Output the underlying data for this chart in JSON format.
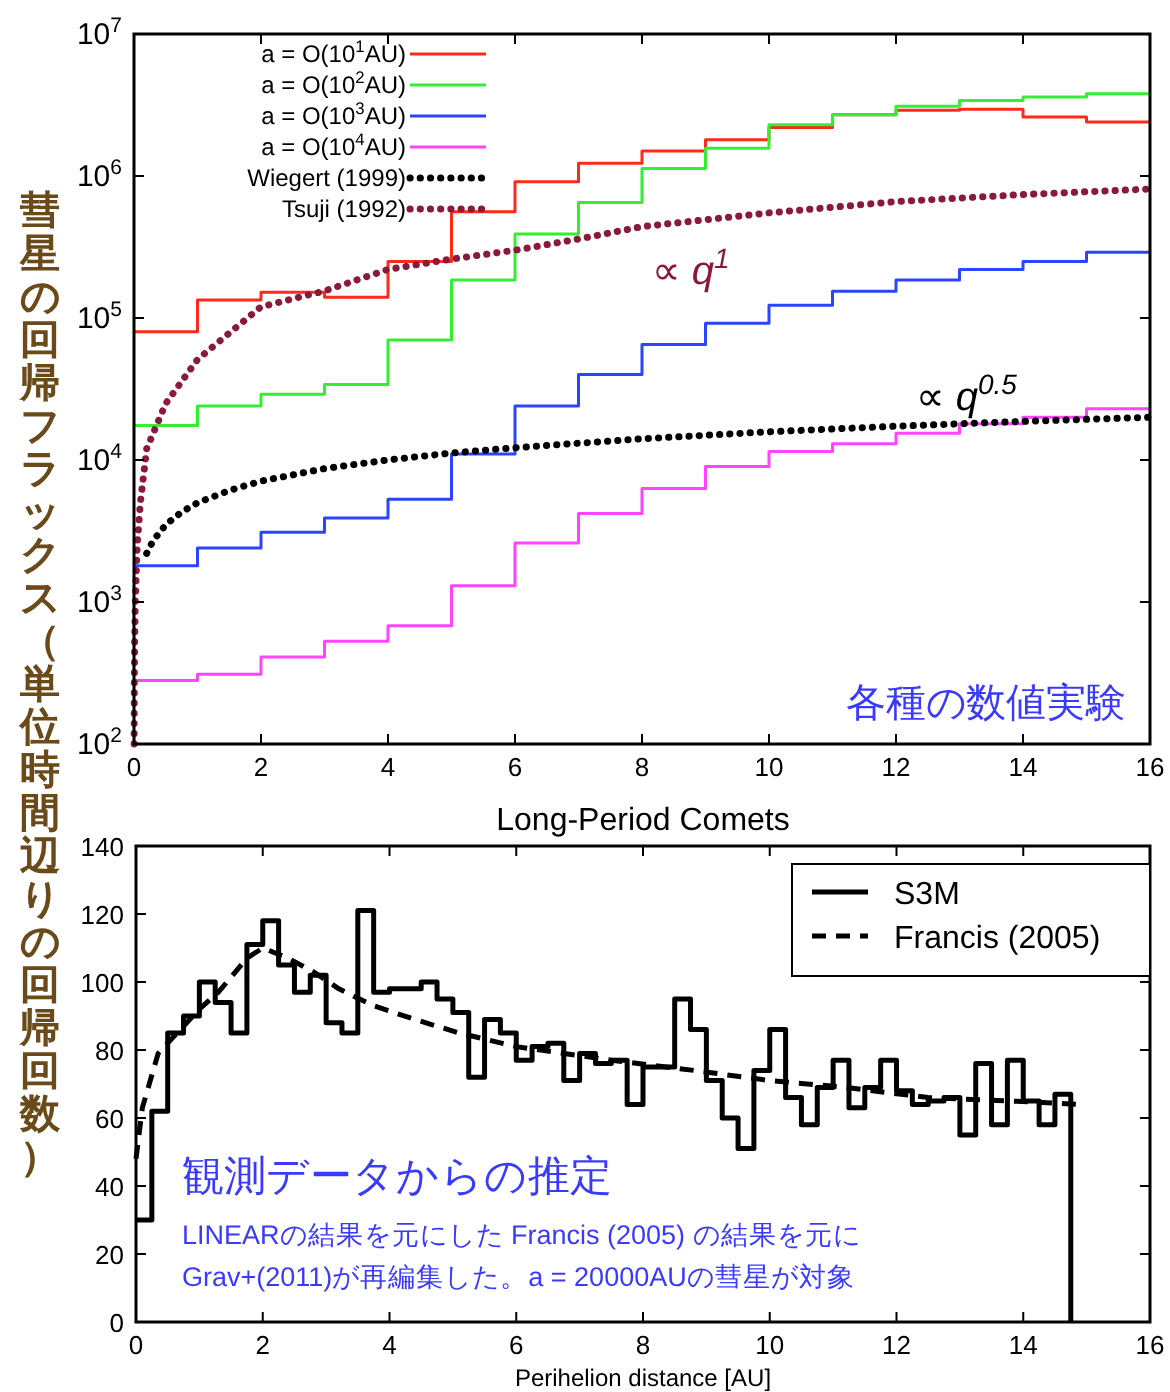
{
  "chart_data": [
    {
      "type": "step",
      "ylabel": "彗星の回帰フラックス（単位時間辺りの回帰回数）",
      "log": "y",
      "legend": "top left",
      "xlim": [
        0,
        16
      ],
      "xticks": [
        0,
        2,
        4,
        6,
        8,
        10,
        12,
        14,
        16
      ],
      "ylim": [
        100,
        10000000
      ],
      "yticks": [
        {
          "value": 100,
          "label": "10$^{2}$"
        },
        {
          "value": 1000,
          "label": "10$^{3}$"
        },
        {
          "value": 10000,
          "label": "10$^{4}$"
        },
        {
          "value": 100000,
          "label": "10$^{5}$"
        },
        {
          "value": 1000000,
          "label": "10$^{6}$"
        },
        {
          "value": 10000000,
          "label": "10$^{7}$"
        }
      ],
      "series": [
        {
          "name": "a = O(10$^{1}$AU)",
          "color": "#ff2a1a",
          "type": "step",
          "x": [
            0,
            1,
            2,
            3,
            4,
            5,
            6,
            7,
            8,
            9,
            10,
            11,
            12,
            13,
            14,
            15,
            16
          ],
          "values": [
            80000,
            134000,
            152000,
            140000,
            250000,
            560000,
            910000,
            1230000,
            1500000,
            1800000,
            2200000,
            2700000,
            2900000,
            2950000,
            2600000,
            2400000,
            2400000
          ]
        },
        {
          "name": "a = O(10$^{2}$AU)",
          "color": "#33ee33",
          "type": "step",
          "x": [
            0,
            1,
            2,
            3,
            4,
            5,
            6,
            7,
            8,
            9,
            10,
            11,
            12,
            13,
            14,
            15,
            16
          ],
          "values": [
            17500,
            24000,
            29000,
            34000,
            70000,
            185000,
            390000,
            650000,
            1130000,
            1570000,
            2300000,
            2700000,
            3100000,
            3400000,
            3600000,
            3800000,
            3800000
          ]
        },
        {
          "name": "a = O(10$^{3}$AU)",
          "color": "#2a44ff",
          "type": "step",
          "x": [
            0,
            1,
            2,
            3,
            4,
            5,
            6,
            7,
            8,
            9,
            10,
            11,
            12,
            13,
            14,
            15,
            16
          ],
          "values": [
            1800,
            2400,
            3100,
            3900,
            5300,
            11000,
            24000,
            40000,
            65000,
            92000,
            123000,
            154000,
            185000,
            220000,
            250000,
            290000,
            290000
          ]
        },
        {
          "name": "a = O(10$^{4}$AU)",
          "color": "#ff44ff",
          "type": "step",
          "x": [
            0,
            1,
            2,
            3,
            4,
            5,
            6,
            7,
            8,
            9,
            10,
            11,
            12,
            13,
            14,
            15,
            16
          ],
          "values": [
            280,
            310,
            410,
            530,
            680,
            1300,
            2600,
            4200,
            6300,
            9000,
            11500,
            13000,
            15400,
            18000,
            20000,
            23000,
            23000
          ]
        },
        {
          "name": "Wiegert (1999)",
          "color": "#000000",
          "type": "line",
          "line_style": "dotted",
          "x": [
            0.2,
            0.3,
            0.5,
            0.75,
            1,
            1.5,
            2,
            3,
            4,
            5,
            6,
            8,
            10,
            12,
            14,
            16
          ],
          "values": [
            2200,
            2700,
            3500,
            4300,
            5000,
            6100,
            7100,
            8700,
            10000,
            11200,
            12200,
            14100,
            15800,
            17300,
            18700,
            20000
          ]
        },
        {
          "name": "Tsuji (1992)",
          "color": "#8b1a3a",
          "type": "line",
          "line_style": "dotted",
          "x": [
            0.002,
            0.005,
            0.01,
            0.02,
            0.05,
            0.1,
            0.2,
            0.5,
            1,
            2,
            3,
            4,
            5,
            6,
            7,
            8,
            10,
            12,
            14,
            16
          ],
          "values": [
            100,
            250,
            500,
            1000,
            2500,
            5000,
            12000,
            25000,
            51000,
            120000,
            155000,
            220000,
            260000,
            300000,
            360000,
            440000,
            550000,
            660000,
            740000,
            810000
          ]
        }
      ],
      "annotations": [
        "∝ q$^{1}$",
        "∝ q$^{0.5}$",
        "各種の数値実験"
      ]
    },
    {
      "type": "step",
      "title": "Long-Period Comets",
      "xlabel": "Perihelion distance [AU]",
      "legend": "top right",
      "xlim": [
        0,
        16
      ],
      "xticks": [
        0,
        2,
        4,
        6,
        8,
        10,
        12,
        14,
        16
      ],
      "ylim": [
        0,
        140
      ],
      "yticks": [
        0,
        20,
        40,
        60,
        80,
        100,
        120,
        140
      ],
      "series": [
        {
          "name": "S3M",
          "color": "#000000",
          "type": "step",
          "x": [
            0,
            0.25,
            0.5,
            0.75,
            1,
            1.25,
            1.5,
            1.75,
            2,
            2.25,
            2.5,
            2.75,
            3,
            3.25,
            3.5,
            3.75,
            4,
            4.25,
            4.5,
            4.75,
            5,
            5.25,
            5.5,
            5.75,
            6,
            6.25,
            6.5,
            6.75,
            7,
            7.25,
            7.5,
            7.75,
            8,
            8.25,
            8.5,
            8.75,
            9,
            9.25,
            9.5,
            9.75,
            10,
            10.25,
            10.5,
            10.75,
            11,
            11.25,
            11.5,
            11.75,
            12,
            12.25,
            12.5,
            12.75,
            13,
            13.25,
            13.5,
            13.75,
            14,
            14.25,
            14.5,
            14.75
          ],
          "values": [
            30,
            62,
            85,
            90,
            100,
            94,
            85,
            111,
            118,
            105,
            97,
            102,
            88,
            85,
            121,
            97,
            98,
            98,
            100,
            95,
            91,
            72,
            89,
            85,
            77,
            81,
            82,
            71,
            79,
            76,
            77,
            64,
            75,
            75,
            95,
            86,
            71,
            60,
            51,
            74,
            86,
            66,
            58,
            69,
            77,
            63,
            69,
            77,
            68,
            64,
            65,
            66,
            55,
            76,
            58,
            77,
            65,
            58,
            67,
            0
          ]
        },
        {
          "name": "Francis (2005)",
          "color": "#000000",
          "type": "line",
          "line_style": "dashed",
          "x": [
            0,
            0.1,
            0.35,
            0.75,
            1,
            1.3,
            1.75,
            2,
            2.4,
            2.8,
            3.2,
            3.75,
            4.4,
            5.1,
            6,
            7.5,
            8.8,
            10,
            11.2,
            12.5,
            13.8,
            14.9
          ],
          "values": [
            48,
            63,
            79,
            87,
            92,
            97,
            107,
            110,
            107,
            103,
            98,
            93,
            89,
            85,
            81,
            77,
            74,
            71,
            69,
            66,
            65,
            64
          ]
        }
      ],
      "annotations": [
        "観測データからの推定",
        "LINEARの結果を元にした Francis (2005) の結果を元に",
        "Grav+(2011)が再編集した。a = 20000AUの彗星が対象"
      ]
    }
  ]
}
